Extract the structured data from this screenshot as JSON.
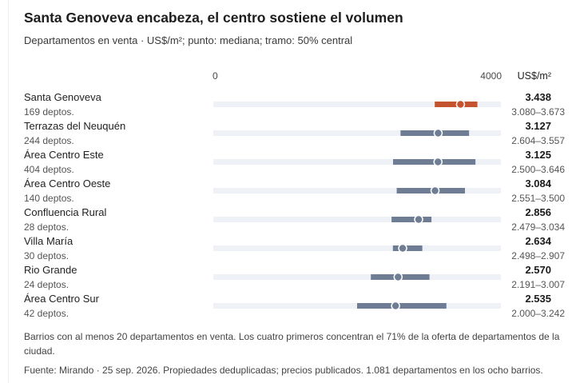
{
  "title": "Santa Genoveva encabeza, el centro sostiene el volumen",
  "subtitle": "Departamentos en venta · US$/m²; punto: mediana; tramo: 50% central",
  "note": "Barrios con al menos 20 departamentos en venta. Los cuatro primeros concentran el 71% de la oferta de departamentos de la ciudad.",
  "source": "Fuente: Mirando · 25 sep. 2026. Propiedades deduplicadas; precios publicados. 1.081 departamentos en los ocho barrios.",
  "colors": {
    "highlight": "#c4532f",
    "default": "#6e7d93",
    "track": "#eef1f6"
  },
  "chart_data": {
    "type": "range-dot",
    "xlim": [
      0,
      4000
    ],
    "ticks": [
      {
        "value": 0,
        "label": "0"
      },
      {
        "value": 4000,
        "label": "4000"
      }
    ],
    "unit_label": "US$/m²",
    "rows": [
      {
        "name": "Santa Genoveva",
        "count_label": "169 deptos.",
        "median": 3438,
        "median_label": "3.438",
        "low": 3080,
        "high": 3673,
        "range_label": "3.080–3.673",
        "highlight": true
      },
      {
        "name": "Terrazas del Neuquén",
        "count_label": "244 deptos.",
        "median": 3127,
        "median_label": "3.127",
        "low": 2604,
        "high": 3557,
        "range_label": "2.604–3.557",
        "highlight": false
      },
      {
        "name": "Área Centro Este",
        "count_label": "404 deptos.",
        "median": 3125,
        "median_label": "3.125",
        "low": 2500,
        "high": 3646,
        "range_label": "2.500–3.646",
        "highlight": false
      },
      {
        "name": "Área Centro Oeste",
        "count_label": "140 deptos.",
        "median": 3084,
        "median_label": "3.084",
        "low": 2551,
        "high": 3500,
        "range_label": "2.551–3.500",
        "highlight": false
      },
      {
        "name": "Confluencia Rural",
        "count_label": "28 deptos.",
        "median": 2856,
        "median_label": "2.856",
        "low": 2479,
        "high": 3034,
        "range_label": "2.479–3.034",
        "highlight": false
      },
      {
        "name": "Villa María",
        "count_label": "30 deptos.",
        "median": 2634,
        "median_label": "2.634",
        "low": 2498,
        "high": 2907,
        "range_label": "2.498–2.907",
        "highlight": false
      },
      {
        "name": "Rio Grande",
        "count_label": "24 deptos.",
        "median": 2570,
        "median_label": "2.570",
        "low": 2191,
        "high": 3007,
        "range_label": "2.191–3.007",
        "highlight": false
      },
      {
        "name": "Área Centro Sur",
        "count_label": "42 deptos.",
        "median": 2535,
        "median_label": "2.535",
        "low": 2000,
        "high": 3242,
        "range_label": "2.000–3.242",
        "highlight": false
      }
    ]
  }
}
